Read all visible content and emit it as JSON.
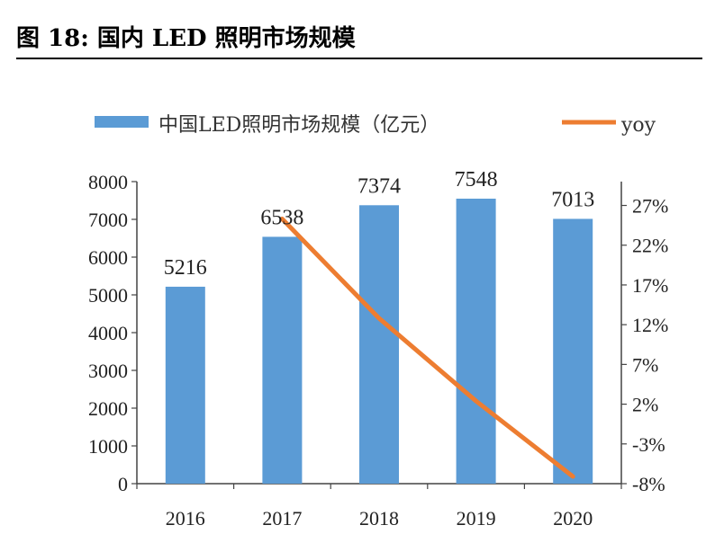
{
  "title": "图 18:  国内 LED 照明市场规模",
  "colors": {
    "bar": "#5b9bd5",
    "line": "#ed7d31",
    "axis": "#444444"
  },
  "chart_data": {
    "type": "bar",
    "categories": [
      "2016",
      "2017",
      "2018",
      "2019",
      "2020"
    ],
    "series": [
      {
        "name": "中国LED照明市场规模（亿元）",
        "kind": "bar",
        "axis": "left",
        "values": [
          5216,
          6538,
          7374,
          7548,
          7013
        ]
      },
      {
        "name": "yoy",
        "kind": "line",
        "axis": "right",
        "values": [
          null,
          25.3,
          12.8,
          2.4,
          -7.1
        ]
      }
    ],
    "y_left": {
      "lim": [
        0,
        8000
      ],
      "ticks": [
        "0",
        "1000",
        "2000",
        "3000",
        "4000",
        "5000",
        "6000",
        "7000",
        "8000"
      ]
    },
    "y_right": {
      "lim": [
        -8,
        30
      ],
      "ticks": [
        "-8%",
        "-3%",
        "2%",
        "7%",
        "12%",
        "17%",
        "22%",
        "27%"
      ],
      "tick_values": [
        -8,
        -3,
        2,
        7,
        12,
        17,
        22,
        27
      ]
    },
    "data_labels": [
      "5216",
      "6538",
      "7374",
      "7548",
      "7013"
    ],
    "legend_position": "top"
  }
}
